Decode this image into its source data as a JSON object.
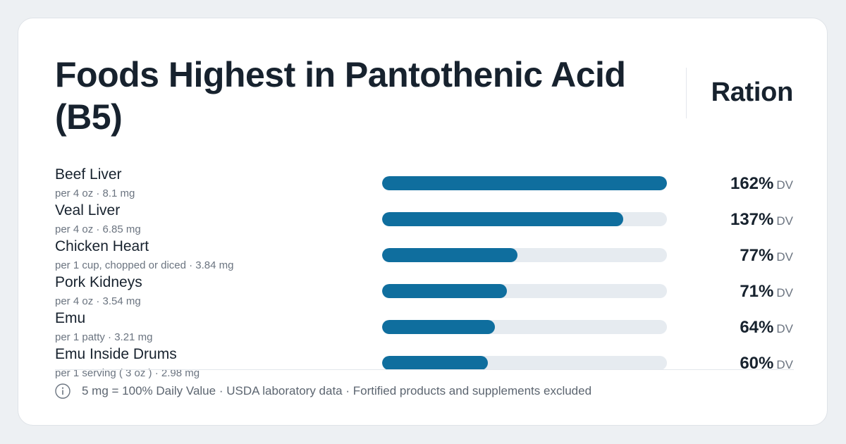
{
  "header": {
    "title": "Foods Highest in Pantothenic Acid (B5)",
    "brand": "Ration"
  },
  "chart_data": {
    "type": "bar",
    "title": "Foods Highest in Pantothenic Acid (B5)",
    "orientation": "horizontal",
    "unit": "% DV",
    "xlim": [
      0,
      162
    ],
    "categories": [
      "Beef Liver",
      "Veal Liver",
      "Chicken Heart",
      "Pork Kidneys",
      "Emu",
      "Emu Inside Drums"
    ],
    "values": [
      162,
      137,
      77,
      71,
      64,
      60
    ],
    "rows": [
      {
        "name": "Beef Liver",
        "serving": "per 4 oz · 8.1 mg",
        "value": 162,
        "value_label": "162%",
        "unit_label": "DV"
      },
      {
        "name": "Veal Liver",
        "serving": "per 4 oz · 6.85 mg",
        "value": 137,
        "value_label": "137%",
        "unit_label": "DV"
      },
      {
        "name": "Chicken Heart",
        "serving": "per 1 cup, chopped or diced · 3.84 mg",
        "value": 77,
        "value_label": "77%",
        "unit_label": "DV"
      },
      {
        "name": "Pork Kidneys",
        "serving": "per 4 oz · 3.54 mg",
        "value": 71,
        "value_label": "71%",
        "unit_label": "DV"
      },
      {
        "name": "Emu",
        "serving": "per 1 patty · 3.21 mg",
        "value": 64,
        "value_label": "64%",
        "unit_label": "DV"
      },
      {
        "name": "Emu Inside Drums",
        "serving": "per 1 serving ( 3 oz ) · 2.98 mg",
        "value": 60,
        "value_label": "60%",
        "unit_label": "DV"
      }
    ],
    "colors": {
      "bar": "#0f6e9e",
      "track": "#e6ebf0"
    }
  },
  "footer": {
    "info_icon": "info-circle-icon",
    "note": "5 mg = 100% Daily Value · USDA laboratory data · Fortified products and supplements excluded"
  }
}
